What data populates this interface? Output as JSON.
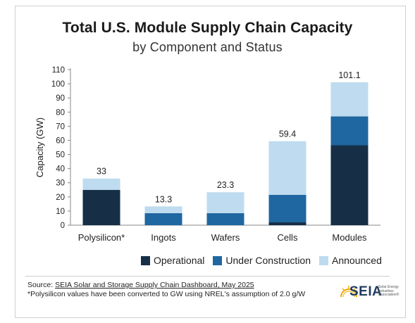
{
  "chart_data": {
    "type": "bar",
    "stacked": true,
    "title": "Total U.S. Module Supply Chain Capacity",
    "subtitle": "by Component and Status",
    "ylabel": "Capacity (GW)",
    "xlabel": "",
    "ylim": [
      0,
      110
    ],
    "yticks": [
      0,
      10,
      20,
      30,
      40,
      50,
      60,
      70,
      80,
      90,
      100,
      110
    ],
    "categories": [
      "Polysilicon*",
      "Ingots",
      "Wafers",
      "Cells",
      "Modules"
    ],
    "series": [
      {
        "name": "Operational",
        "color": "#162f47",
        "values": [
          25,
          0,
          0,
          2,
          56.5
        ]
      },
      {
        "name": "Under Construction",
        "color": "#1f67a1",
        "values": [
          0,
          8.5,
          8.5,
          19.5,
          20.5
        ]
      },
      {
        "name": "Announced",
        "color": "#bedbef",
        "values": [
          8,
          4.8,
          14.8,
          37.9,
          24.1
        ]
      }
    ],
    "totals": [
      "33",
      "13.3",
      "23.3",
      "59.4",
      "101.1"
    ],
    "grid": false,
    "legend_position": "bottom"
  },
  "footer": {
    "source_prefix": "Source: ",
    "source_link": "SEIA Solar and Storage Supply Chain Dashboard, May 2025",
    "note": "*Polysilicon values have been converted to GW using NREL's assumption of 2.0 g/W"
  },
  "logo": {
    "text": "SEIA",
    "subtext": "Solar Energy Industries Association®",
    "icon": "sun-burst-icon"
  }
}
